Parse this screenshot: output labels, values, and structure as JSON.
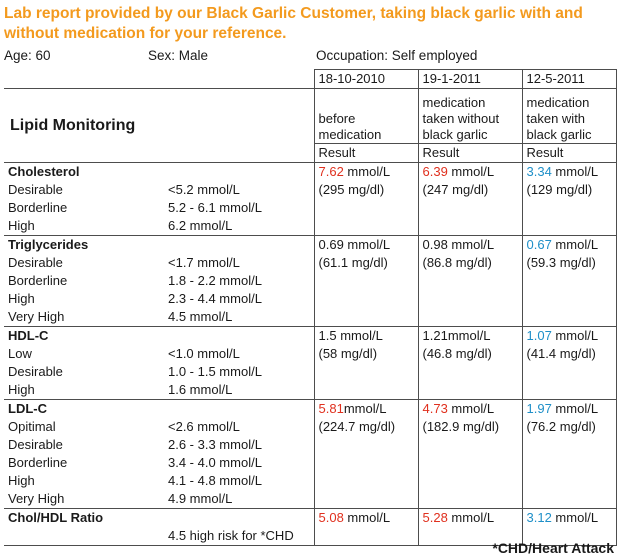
{
  "title": "Lab report provided by our Black Garlic Customer, taking black garlic with and without medication for your reference.",
  "patient": {
    "age": "Age: 60",
    "sex": "Sex:  Male",
    "occupation": "Occupation:   Self employed"
  },
  "table": {
    "section_title": "Lipid Monitoring",
    "dates": [
      "18-10-2010",
      "19-1-2011",
      "12-5-2011"
    ],
    "descriptions": [
      [
        "",
        "before",
        "medication"
      ],
      [
        "medication",
        "taken without",
        "black garlic"
      ],
      [
        "medication",
        "taken with",
        "black garlic"
      ]
    ],
    "result_label": "Result",
    "cholesterol": {
      "name": "Cholesterol",
      "ranges": [
        [
          "Desirable",
          "<5.2 mmol/L"
        ],
        [
          "Borderline",
          "5.2 - 6.1 mmol/L"
        ],
        [
          "High",
          "6.2 mmol/L"
        ]
      ],
      "values": [
        {
          "num": "7.62",
          "unit": " mmol/L",
          "mg": "(295 mg/dl)"
        },
        {
          "num": "6.39",
          "unit": " mmol/L",
          "mg": "(247 mg/dl)"
        },
        {
          "num": "3.34",
          "unit": " mmol/L",
          "mg": "(129 mg/dl)"
        }
      ]
    },
    "triglycerides": {
      "name": "Triglycerides",
      "ranges": [
        [
          "Desirable",
          "<1.7 mmol/L"
        ],
        [
          "Borderline",
          "1.8 - 2.2 mmol/L"
        ],
        [
          "High",
          "2.3 - 4.4 mmol/L"
        ],
        [
          "Very High",
          "4.5 mmol/L"
        ]
      ],
      "values": [
        {
          "num": "0.69",
          "unit": " mmol/L",
          "mg": "(61.1 mg/dl)"
        },
        {
          "num": "0.98",
          "unit": " mmol/L",
          "mg": "(86.8 mg/dl)"
        },
        {
          "num": "0.67",
          "unit": " mmol/L",
          "mg": "(59.3 mg/dl)"
        }
      ]
    },
    "hdl": {
      "name": "HDL-C",
      "ranges": [
        [
          "Low",
          "<1.0 mmol/L"
        ],
        [
          "Desirable",
          "1.0 - 1.5 mmol/L"
        ],
        [
          "High",
          "1.6 mmol/L"
        ]
      ],
      "values": [
        {
          "num": "1.5",
          "unit": " mmol/L",
          "mg": "(58 mg/dl)"
        },
        {
          "num": "1.21",
          "unit": "mmol/L",
          "mg": "(46.8 mg/dl)"
        },
        {
          "num": "1.07",
          "unit": " mmol/L",
          "mg": "(41.4 mg/dl)"
        }
      ]
    },
    "ldl": {
      "name": "LDL-C",
      "ranges": [
        [
          "Opitimal",
          "<2.6 mmol/L"
        ],
        [
          "Desirable",
          "2.6 - 3.3 mmol/L"
        ],
        [
          "Borderline",
          "3.4 - 4.0 mmol/L"
        ],
        [
          "High",
          "4.1 - 4.8 mmol/L"
        ],
        [
          "Very High",
          "4.9 mmol/L"
        ]
      ],
      "values": [
        {
          "num": "5.81",
          "unit": "mmol/L",
          "mg": "(224.7 mg/dl)"
        },
        {
          "num": "4.73",
          "unit": " mmol/L",
          "mg": "(182.9 mg/dl)"
        },
        {
          "num": "1.97",
          "unit": " mmol/L",
          "mg": "(76.2 mg/dl)"
        }
      ]
    },
    "ratio": {
      "name": "Chol/HDL Ratio",
      "note": "4.5 high risk for *CHD",
      "values": [
        {
          "num": "5.08",
          "unit": " mmol/L"
        },
        {
          "num": "5.28",
          "unit": " mmol/L"
        },
        {
          "num": "3.12",
          "unit": " mmol/L"
        }
      ]
    }
  },
  "footnote": "*CHD/Heart Attack",
  "colors": {
    "title": "#f39a1e",
    "high_value": "#e0301e",
    "improved_value": "#1e8fc8"
  }
}
